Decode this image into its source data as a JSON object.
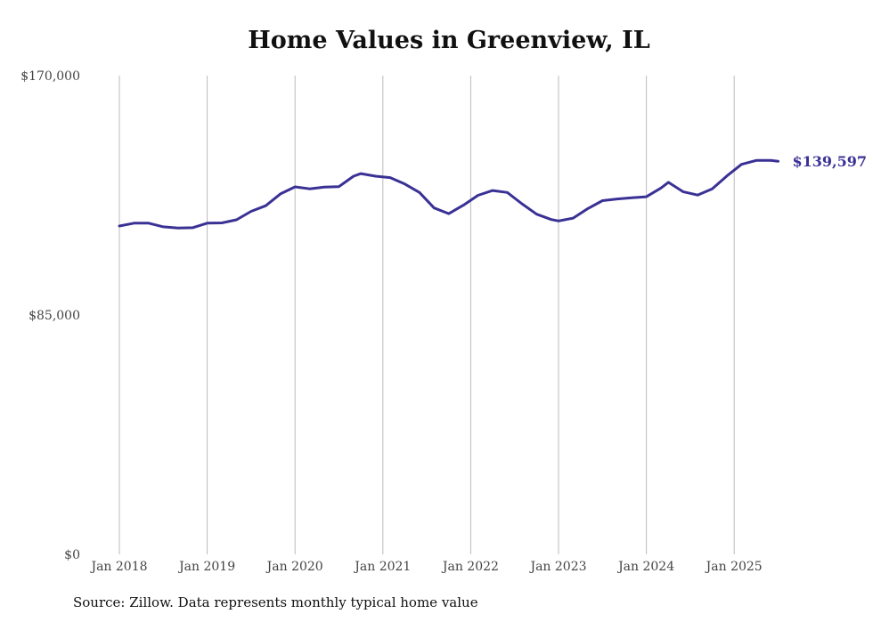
{
  "chart_data": {
    "type": "line",
    "title": "Home Values in Greenview, IL",
    "xlabel": "",
    "ylabel": "",
    "ylim": [
      0,
      170000
    ],
    "y_ticks": [
      "$0",
      "$85,000",
      "$170,000"
    ],
    "y_tick_values": [
      0,
      85000,
      170000
    ],
    "x_ticks": [
      "Jan 2018",
      "Jan 2019",
      "Jan 2020",
      "Jan 2021",
      "Jan 2022",
      "Jan 2023",
      "Jan 2024",
      "Jan 2025"
    ],
    "grid": "vertical",
    "line_color": "#3a3195",
    "end_label": "$139,597",
    "series": [
      {
        "name": "Typical home value",
        "points": [
          [
            "2018-01",
            116600
          ],
          [
            "2018-03",
            117600
          ],
          [
            "2018-05",
            117600
          ],
          [
            "2018-07",
            116300
          ],
          [
            "2018-09",
            115900
          ],
          [
            "2018-11",
            116000
          ],
          [
            "2019-01",
            117600
          ],
          [
            "2019-03",
            117700
          ],
          [
            "2019-05",
            118800
          ],
          [
            "2019-07",
            121800
          ],
          [
            "2019-09",
            123800
          ],
          [
            "2019-11",
            128000
          ],
          [
            "2020-01",
            130500
          ],
          [
            "2020-03",
            129800
          ],
          [
            "2020-05",
            130400
          ],
          [
            "2020-07",
            130600
          ],
          [
            "2020-09",
            134300
          ],
          [
            "2020-10",
            135200
          ],
          [
            "2020-12",
            134300
          ],
          [
            "2021-02",
            133800
          ],
          [
            "2021-04",
            131500
          ],
          [
            "2021-06",
            128500
          ],
          [
            "2021-08",
            123000
          ],
          [
            "2021-10",
            121000
          ],
          [
            "2021-12",
            124000
          ],
          [
            "2022-02",
            127500
          ],
          [
            "2022-04",
            129200
          ],
          [
            "2022-06",
            128500
          ],
          [
            "2022-08",
            124500
          ],
          [
            "2022-10",
            120800
          ],
          [
            "2022-12",
            118900
          ],
          [
            "2023-01",
            118400
          ],
          [
            "2023-03",
            119400
          ],
          [
            "2023-05",
            122800
          ],
          [
            "2023-07",
            125600
          ],
          [
            "2023-09",
            126200
          ],
          [
            "2023-11",
            126600
          ],
          [
            "2024-01",
            127000
          ],
          [
            "2024-03",
            130100
          ],
          [
            "2024-04",
            132100
          ],
          [
            "2024-06",
            128800
          ],
          [
            "2024-08",
            127600
          ],
          [
            "2024-10",
            129800
          ],
          [
            "2024-12",
            134400
          ],
          [
            "2025-02",
            138500
          ],
          [
            "2025-04",
            139900
          ],
          [
            "2025-06",
            139900
          ],
          [
            "2025-07",
            139597
          ]
        ]
      }
    ]
  },
  "source": "Source: Zillow. Data represents monthly typical home value"
}
